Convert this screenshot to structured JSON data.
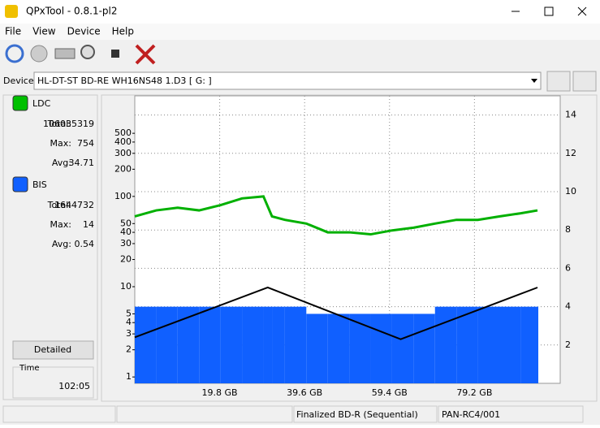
{
  "window": {
    "title": "QPxTool - 0.8.1-pl2"
  },
  "menu": [
    "File",
    "View",
    "Device",
    "Help"
  ],
  "device": {
    "label": "Device:",
    "value": "HL-DT-ST BD-RE  WH16NS48  1.D3 [ G: ]"
  },
  "stats": [
    {
      "name": "LDC",
      "color": "#00c000",
      "rows": [
        {
          "label": "Total:",
          "value": 106035319
        },
        {
          "label": "Max:",
          "value": 754
        },
        {
          "label": "Avg:",
          "value": 34.71
        }
      ]
    },
    {
      "name": "BIS",
      "color": "#1060ff",
      "rows": [
        {
          "label": "Total:",
          "value": 1644732
        },
        {
          "label": "Max:",
          "value": 14
        },
        {
          "label": "Avg:",
          "value": 0.54
        }
      ]
    }
  ],
  "detailed": "Detailed",
  "time": {
    "label": "Time",
    "value": "102:05"
  },
  "status": [
    "Finalized BD-R (Sequential)",
    "PAN-RC4/001"
  ],
  "chart_data": {
    "type": "line",
    "yscale": "log",
    "xlim": [
      0,
      99.2
    ],
    "xticks": [
      {
        "value": 19.8,
        "label": "19.8 GB"
      },
      {
        "value": 39.6,
        "label": "39.6 GB"
      },
      {
        "value": 59.4,
        "label": "59.4 GB"
      },
      {
        "value": 79.2,
        "label": "79.2 GB"
      }
    ],
    "ylim": [
      0.85,
      1300
    ],
    "yticks": [
      1,
      2,
      3,
      4,
      5,
      10,
      20,
      30,
      40,
      50,
      100,
      200,
      300,
      400,
      500
    ],
    "y2lim": [
      0,
      15
    ],
    "y2ticks": [
      2,
      4,
      6,
      8,
      10,
      12,
      14
    ],
    "grid": true,
    "series": [
      {
        "name": "LDC",
        "color": "#00b000",
        "x": [
          0,
          5,
          10,
          15,
          20,
          25,
          30,
          32,
          35,
          40,
          45,
          50,
          55,
          60,
          65,
          70,
          75,
          80,
          85,
          90,
          93.9
        ],
        "values": [
          60,
          70,
          75,
          70,
          80,
          95,
          100,
          60,
          55,
          50,
          40,
          40,
          38,
          42,
          45,
          50,
          55,
          55,
          60,
          65,
          70
        ]
      },
      {
        "name": "BIS",
        "color": "#1060ff",
        "x": [
          0,
          5,
          10,
          15,
          20,
          25,
          30,
          32,
          35,
          40,
          45,
          50,
          55,
          60,
          65,
          70,
          75,
          80,
          85,
          90,
          93.9
        ],
        "values": [
          6,
          6,
          6,
          6,
          6,
          6,
          6,
          6,
          6,
          5,
          5,
          5,
          5,
          5,
          5,
          6,
          6,
          6,
          6,
          6,
          6
        ]
      },
      {
        "color": "#000000",
        "axis": "y2",
        "x": [
          0,
          31,
          62,
          93.9
        ],
        "values": [
          2.4,
          5,
          2.3,
          5
        ]
      }
    ]
  }
}
